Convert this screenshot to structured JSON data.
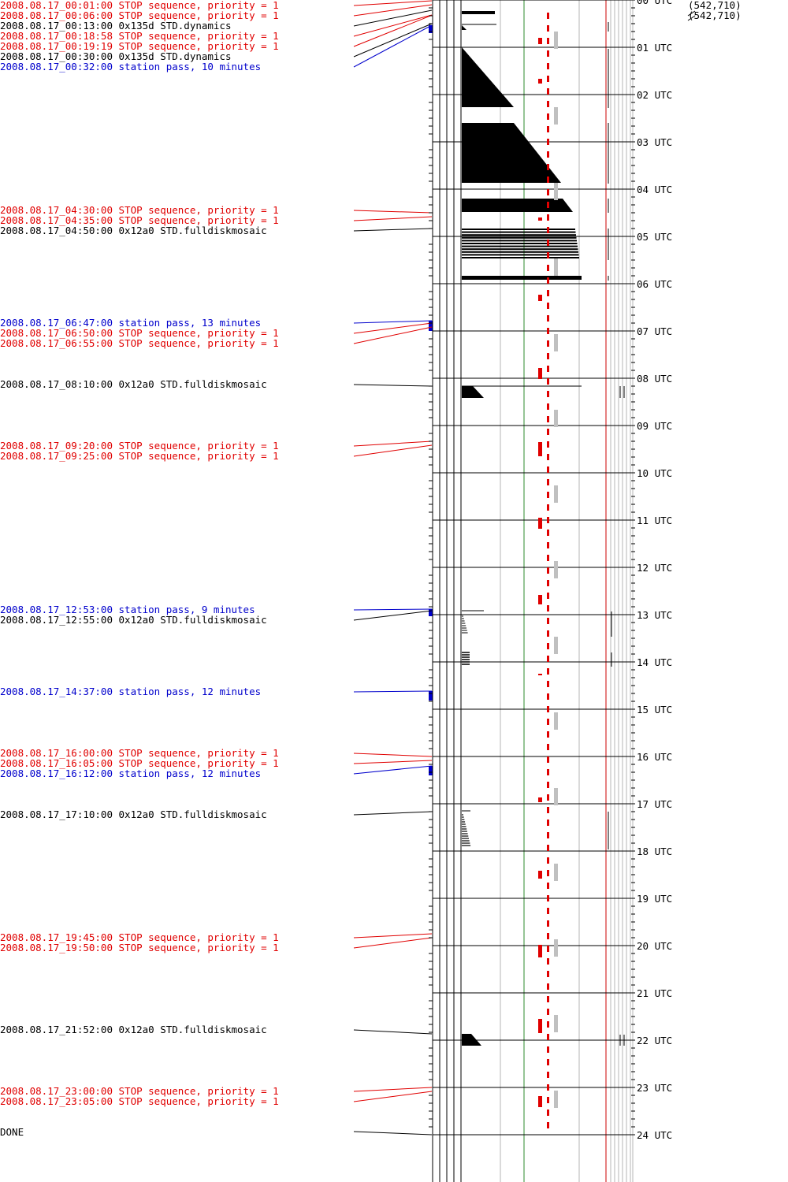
{
  "events": [
    {
      "time": "2008.08.17_00:01:00",
      "text": "STOP sequence, priority = 1",
      "kind": "stop",
      "hour": 0.0167
    },
    {
      "time": "2008.08.17_00:06:00",
      "text": "STOP sequence, priority = 1",
      "kind": "stop",
      "hour": 0.1
    },
    {
      "time": "2008.08.17_00:13:00",
      "text": "0x135d STD.dynamics",
      "kind": "cmd",
      "hour": 0.2167
    },
    {
      "time": "2008.08.17_00:18:58",
      "text": "STOP sequence, priority = 1",
      "kind": "stop",
      "hour": 0.316
    },
    {
      "time": "2008.08.17_00:19:19",
      "text": "STOP sequence, priority = 1",
      "kind": "stop",
      "hour": 0.322
    },
    {
      "time": "2008.08.17_00:30:00",
      "text": "0x135d STD.dynamics",
      "kind": "cmd",
      "hour": 0.5
    },
    {
      "time": "2008.08.17_00:32:00",
      "text": "station pass, 10 minutes",
      "kind": "pass",
      "hour": 0.5333,
      "duration_min": 10
    },
    {
      "time": "2008.08.17_04:30:00",
      "text": "STOP sequence, priority = 1",
      "kind": "stop",
      "hour": 4.5
    },
    {
      "time": "2008.08.17_04:35:00",
      "text": "STOP sequence, priority = 1",
      "kind": "stop",
      "hour": 4.5833
    },
    {
      "time": "2008.08.17_04:50:00",
      "text": "0x12a0 STD.fulldiskmosaic",
      "kind": "cmd",
      "hour": 4.8333
    },
    {
      "time": "2008.08.17_06:47:00",
      "text": "station pass, 13 minutes",
      "kind": "pass",
      "hour": 6.7833,
      "duration_min": 13
    },
    {
      "time": "2008.08.17_06:50:00",
      "text": "STOP sequence, priority = 1",
      "kind": "stop",
      "hour": 6.8333
    },
    {
      "time": "2008.08.17_06:55:00",
      "text": "STOP sequence, priority = 1",
      "kind": "stop",
      "hour": 6.9167
    },
    {
      "time": "2008.08.17_08:10:00",
      "text": "0x12a0 STD.fulldiskmosaic",
      "kind": "cmd",
      "hour": 8.1667
    },
    {
      "time": "2008.08.17_09:20:00",
      "text": "STOP sequence, priority = 1",
      "kind": "stop",
      "hour": 9.3333
    },
    {
      "time": "2008.08.17_09:25:00",
      "text": "STOP sequence, priority = 1",
      "kind": "stop",
      "hour": 9.4167
    },
    {
      "time": "2008.08.17_12:53:00",
      "text": "station pass, 9 minutes",
      "kind": "pass",
      "hour": 12.8833,
      "duration_min": 9
    },
    {
      "time": "2008.08.17_12:55:00",
      "text": "0x12a0 STD.fulldiskmosaic",
      "kind": "cmd",
      "hour": 12.9167
    },
    {
      "time": "2008.08.17_14:37:00",
      "text": "station pass, 12 minutes",
      "kind": "pass",
      "hour": 14.6167,
      "duration_min": 12
    },
    {
      "time": "2008.08.17_16:00:00",
      "text": "STOP sequence, priority = 1",
      "kind": "stop",
      "hour": 16.0
    },
    {
      "time": "2008.08.17_16:05:00",
      "text": "STOP sequence, priority = 1",
      "kind": "stop",
      "hour": 16.0833
    },
    {
      "time": "2008.08.17_16:12:00",
      "text": "station pass, 12 minutes",
      "kind": "pass",
      "hour": 16.2,
      "duration_min": 12
    },
    {
      "time": "2008.08.17_17:10:00",
      "text": "0x12a0 STD.fulldiskmosaic",
      "kind": "cmd",
      "hour": 17.1667
    },
    {
      "time": "2008.08.17_19:45:00",
      "text": "STOP sequence, priority = 1",
      "kind": "stop",
      "hour": 19.75
    },
    {
      "time": "2008.08.17_19:50:00",
      "text": "STOP sequence, priority = 1",
      "kind": "stop",
      "hour": 19.8333
    },
    {
      "time": "2008.08.17_21:52:00",
      "text": "0x12a0 STD.fulldiskmosaic",
      "kind": "cmd",
      "hour": 21.8667
    },
    {
      "time": "2008.08.17_23:00:00",
      "text": "STOP sequence, priority = 1",
      "kind": "stop",
      "hour": 23.0
    },
    {
      "time": "2008.08.17_23:05:00",
      "text": "STOP sequence, priority = 1",
      "kind": "stop",
      "hour": 23.0833
    }
  ],
  "done_label": "DONE",
  "hour_labels": [
    "00 UTC",
    "01 UTC",
    "02 UTC",
    "03 UTC",
    "04 UTC",
    "05 UTC",
    "06 UTC",
    "07 UTC",
    "08 UTC",
    "09 UTC",
    "10 UTC",
    "11 UTC",
    "12 UTC",
    "13 UTC",
    "14 UTC",
    "15 UTC",
    "16 UTC",
    "17 UTC",
    "18 UTC",
    "19 UTC",
    "20 UTC",
    "21 UTC",
    "22 UTC",
    "23 UTC",
    "24 UTC"
  ],
  "coord_labels": [
    "(542,710)",
    "(542,710)"
  ],
  "colors": {
    "stop": "#e00000",
    "pass": "#0000cc",
    "cmd": "#000000",
    "grid": "#b4b4b4",
    "green": "#2e8b2e",
    "limit": "#cc0000",
    "gray_marks": "#c0c0c0"
  }
}
